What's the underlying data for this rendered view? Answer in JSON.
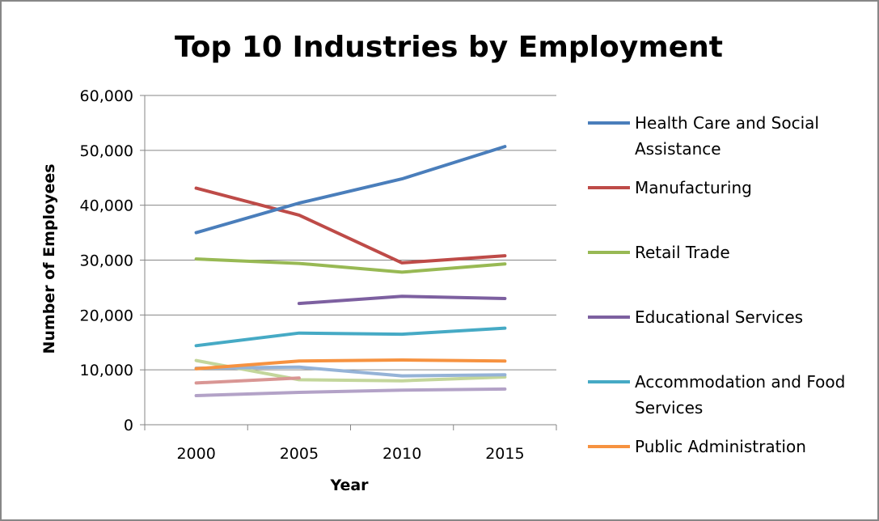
{
  "chart_data": {
    "type": "line",
    "title": "Top 10 Industries by Employment",
    "xlabel": "Year",
    "ylabel": "Number of Employees",
    "ylim": [
      0,
      60000
    ],
    "yticks": [
      0,
      10000,
      20000,
      30000,
      40000,
      50000,
      60000
    ],
    "ytick_labels": [
      "0",
      "10,000",
      "20,000",
      "30,000",
      "40,000",
      "50,000",
      "60,000"
    ],
    "categories": [
      "2000",
      "2005",
      "2010",
      "2015"
    ],
    "grid": "horizontal",
    "legend_position": "right",
    "series": [
      {
        "name": "Health Care and Social Assistance",
        "legend_lines": [
          "Health Care and Social",
          "Assistance"
        ],
        "color": "#4a7ebb",
        "values": [
          35000,
          40400,
          44800,
          50700
        ]
      },
      {
        "name": "Manufacturing",
        "legend_lines": [
          "Manufacturing"
        ],
        "color": "#be4b48",
        "values": [
          43100,
          38200,
          29500,
          30800
        ]
      },
      {
        "name": "Retail Trade",
        "legend_lines": [
          "Retail Trade"
        ],
        "color": "#98b954",
        "values": [
          30200,
          29400,
          27800,
          29300
        ]
      },
      {
        "name": "Educational Services",
        "legend_lines": [
          "Educational Services"
        ],
        "color": "#7d60a0",
        "values": [
          null,
          22100,
          23400,
          23000
        ]
      },
      {
        "name": "Accommodation and Food Services",
        "legend_lines": [
          "Accommodation and Food",
          "Services"
        ],
        "color": "#46aac5",
        "values": [
          14400,
          16700,
          16500,
          17600
        ]
      },
      {
        "name": "Public Administration",
        "legend_lines": [
          "Public Administration"
        ],
        "color": "#f69240",
        "values": [
          10200,
          11600,
          11800,
          11600
        ]
      },
      {
        "name": "",
        "legend_lines": [],
        "color": "#95b3d7",
        "values": [
          10300,
          10500,
          8900,
          9100
        ]
      },
      {
        "name": "",
        "legend_lines": [],
        "color": "#d99694",
        "values": [
          7600,
          8500,
          null,
          null
        ]
      },
      {
        "name": "",
        "legend_lines": [],
        "color": "#c3d69b",
        "values": [
          11700,
          8200,
          8000,
          8700
        ]
      },
      {
        "name": "",
        "legend_lines": [],
        "color": "#b3a2c7",
        "values": [
          5300,
          5900,
          6300,
          6500
        ]
      }
    ]
  }
}
